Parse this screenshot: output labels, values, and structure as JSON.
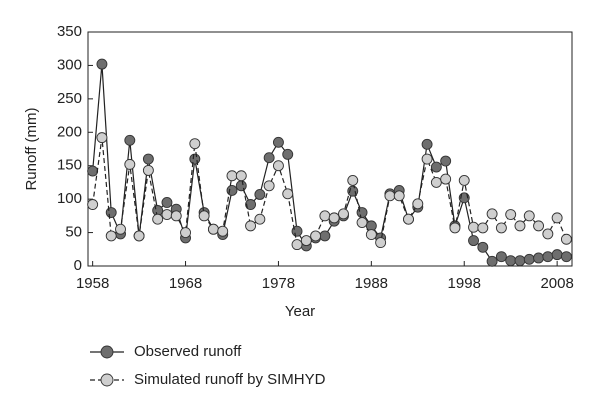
{
  "chart_data": {
    "type": "line",
    "x_label": "Year",
    "y_label": "Runoff (mm)",
    "x": [
      1958,
      1959,
      1960,
      1961,
      1962,
      1963,
      1964,
      1965,
      1966,
      1967,
      1968,
      1969,
      1970,
      1971,
      1972,
      1973,
      1974,
      1975,
      1976,
      1977,
      1978,
      1979,
      1980,
      1981,
      1982,
      1983,
      1984,
      1985,
      1986,
      1987,
      1988,
      1989,
      1990,
      1991,
      1992,
      1993,
      1994,
      1995,
      1996,
      1997,
      1998,
      1999,
      2000,
      2001,
      2002,
      2003,
      2004,
      2005,
      2006,
      2007,
      2008,
      2009
    ],
    "series": [
      {
        "name": "Observed runoff",
        "color": "#6e6e6e",
        "dashed": false,
        "values": [
          142,
          302,
          80,
          48,
          188,
          45,
          160,
          83,
          95,
          85,
          42,
          160,
          80,
          55,
          47,
          113,
          120,
          92,
          107,
          162,
          185,
          167,
          52,
          30,
          42,
          45,
          67,
          75,
          112,
          80,
          60,
          42,
          108,
          113,
          70,
          88,
          182,
          148,
          157,
          60,
          102,
          38,
          28,
          7,
          14,
          8,
          8,
          10,
          12,
          14,
          17,
          14
        ]
      },
      {
        "name": "Simulated runoff by SIMHYD",
        "color": "#cfcfcf",
        "dashed": true,
        "values": [
          92,
          192,
          45,
          55,
          152,
          45,
          143,
          70,
          77,
          75,
          50,
          183,
          75,
          55,
          52,
          135,
          135,
          60,
          70,
          120,
          150,
          108,
          32,
          38,
          45,
          75,
          72,
          78,
          128,
          65,
          47,
          35,
          105,
          105,
          70,
          93,
          160,
          125,
          130,
          57,
          128,
          58,
          57,
          78,
          57,
          77,
          60,
          75,
          60,
          48,
          72,
          40
        ]
      }
    ],
    "xlim": [
      1957.5,
      2009.6
    ],
    "xticks": [
      1958,
      1968,
      1978,
      1988,
      1998,
      2008
    ],
    "ylim": [
      0,
      350
    ],
    "yticks": [
      0,
      50,
      100,
      150,
      200,
      250,
      300,
      350
    ],
    "legend": "bottom"
  }
}
